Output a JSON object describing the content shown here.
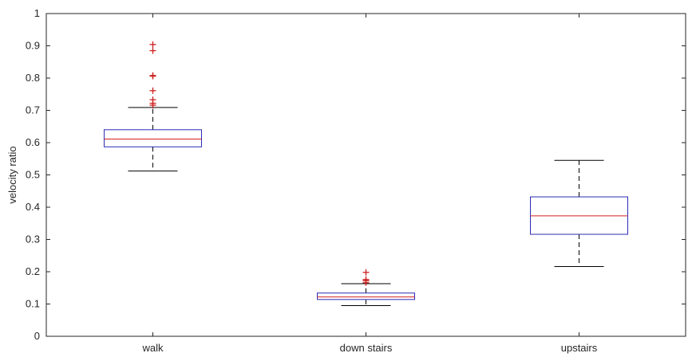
{
  "chart_data": {
    "type": "boxplot",
    "title": "",
    "xlabel": "",
    "ylabel": "velocity ratio",
    "ylim": [
      0,
      1
    ],
    "yticks": [
      "0",
      "0.1",
      "0.2",
      "0.3",
      "0.4",
      "0.5",
      "0.6",
      "0.7",
      "0.8",
      "0.9",
      "1"
    ],
    "grid": false,
    "legend": "none",
    "categories": [
      "walk",
      "down stairs",
      "upstairs"
    ],
    "boxes": [
      {
        "category": "walk",
        "whisker_low": 0.512,
        "q1": 0.587,
        "median": 0.611,
        "q3": 0.64,
        "whisker_high": 0.709,
        "outliers": [
          0.716,
          0.722,
          0.733,
          0.761,
          0.806,
          0.808,
          0.885,
          0.904
        ]
      },
      {
        "category": "down stairs",
        "whisker_low": 0.095,
        "q1": 0.114,
        "median": 0.122,
        "q3": 0.134,
        "whisker_high": 0.163,
        "outliers": [
          0.166,
          0.172,
          0.176,
          0.198
        ]
      },
      {
        "category": "upstairs",
        "whisker_low": 0.216,
        "q1": 0.316,
        "median": 0.373,
        "q3": 0.432,
        "whisker_high": 0.545,
        "outliers": []
      }
    ],
    "colors": {
      "box": "#2b2bb5",
      "median": "#d42020",
      "whisker": "#000000",
      "outlier": "#cc1f1f",
      "axis": "#262626"
    }
  }
}
